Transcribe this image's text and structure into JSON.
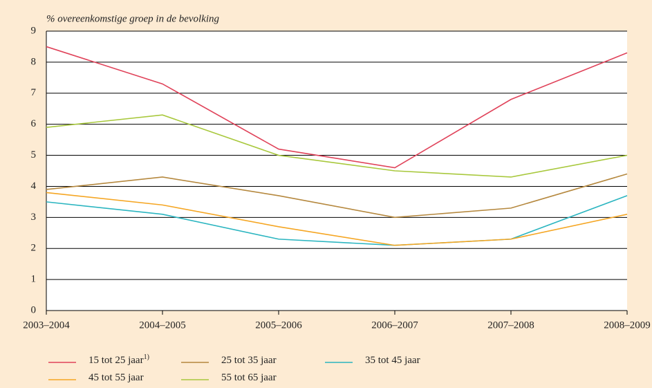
{
  "chart_data": {
    "type": "line",
    "y_label": "% overeenkomstige groep in de bevolking",
    "categories": [
      "2003–2004",
      "2004–2005",
      "2005–2006",
      "2006–2007",
      "2007–2008",
      "2008–2009"
    ],
    "series": [
      {
        "name": "15 tot 25 jaar",
        "note": "1)",
        "color": "#e0435a",
        "values": [
          8.5,
          7.3,
          5.2,
          4.6,
          6.8,
          8.3
        ]
      },
      {
        "name": "25 tot 35 jaar",
        "color": "#b5883e",
        "values": [
          3.9,
          4.3,
          3.7,
          3.0,
          3.3,
          4.4
        ]
      },
      {
        "name": "35 tot 45 jaar",
        "color": "#2bb5c0",
        "values": [
          3.5,
          3.1,
          2.3,
          2.1,
          2.3,
          3.7
        ]
      },
      {
        "name": "45 tot 55 jaar",
        "color": "#f5a623",
        "values": [
          3.8,
          3.4,
          2.7,
          2.1,
          2.3,
          3.1
        ]
      },
      {
        "name": "55 tot 65 jaar",
        "color": "#a8c83c",
        "values": [
          5.9,
          6.3,
          5.0,
          4.5,
          4.3,
          5.0
        ]
      }
    ],
    "ylim": [
      0,
      9
    ],
    "yticks": [
      0,
      1,
      2,
      3,
      4,
      5,
      6,
      7,
      8,
      9
    ],
    "grid": true
  }
}
